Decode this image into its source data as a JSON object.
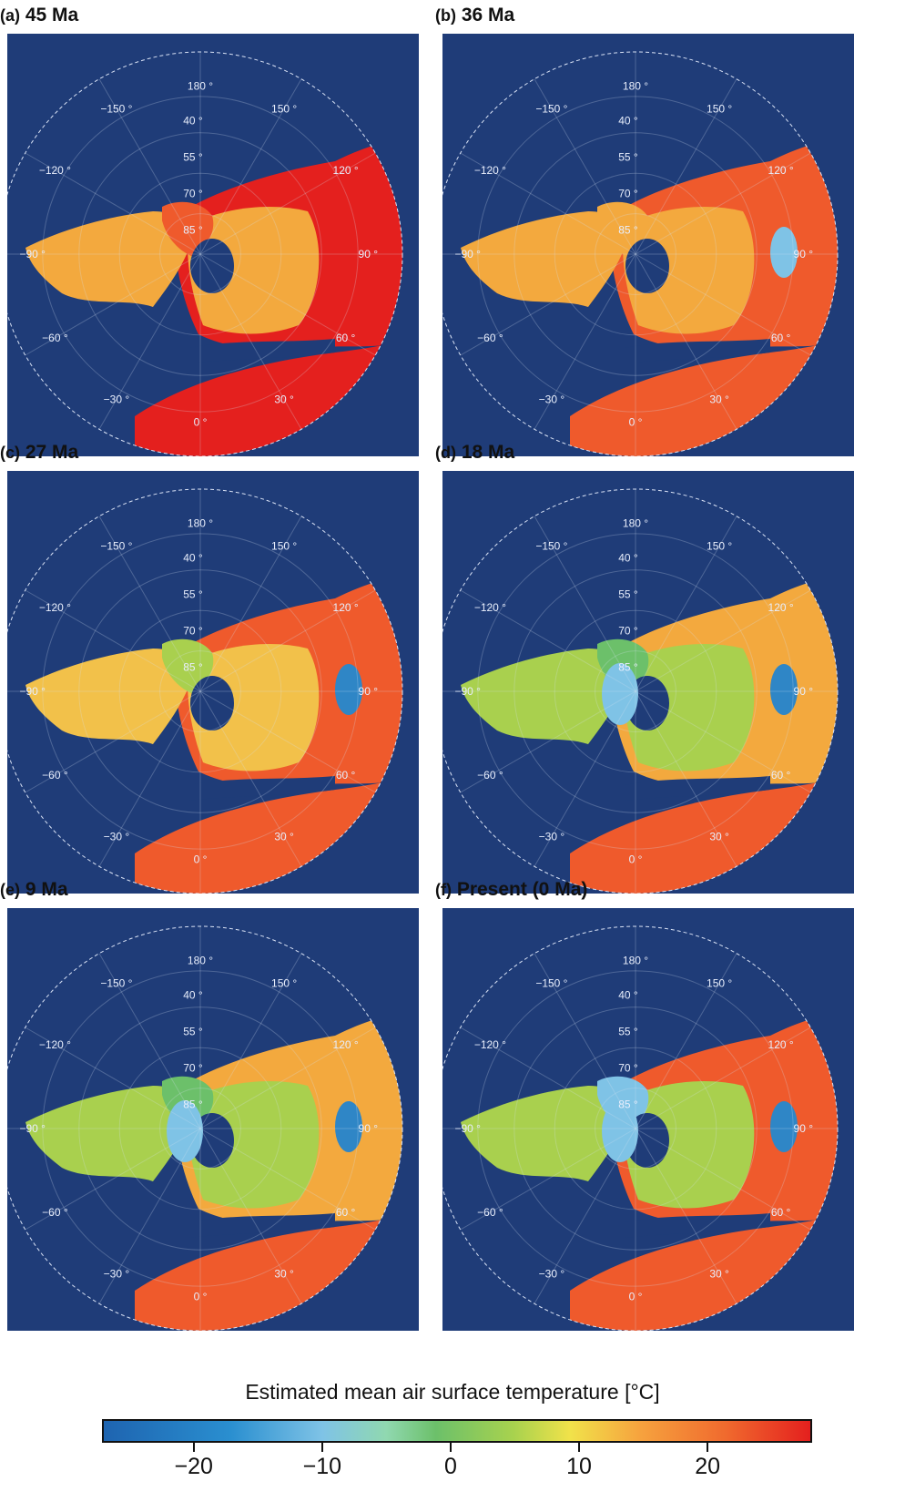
{
  "panels": [
    {
      "label": "(a)",
      "age": "45 Ma"
    },
    {
      "label": "(b)",
      "age": "36 Ma"
    },
    {
      "label": "(c)",
      "age": "27 Ma"
    },
    {
      "label": "(d)",
      "age": "18 Ma"
    },
    {
      "label": "(e)",
      "age": "9 Ma"
    },
    {
      "label": "(f)",
      "age": "Present (0 Ma)"
    }
  ],
  "grid_labels": {
    "longitudes": [
      "180 °",
      "150 °",
      "120 °",
      "90 °",
      "60 °",
      "30 °",
      "0 °",
      "−30 °",
      "−60 °",
      "−90 °",
      "−120 °",
      "−150 °"
    ],
    "latitudes": [
      "40 °",
      "55 °",
      "70 °",
      "85 °"
    ]
  },
  "legend": {
    "title": "Estimated mean air surface temperature [°C]",
    "ticks": [
      "−20",
      "−10",
      "0",
      "10",
      "20"
    ],
    "tick_values": [
      -20,
      -10,
      0,
      10,
      20
    ],
    "range": [
      -27,
      28
    ]
  },
  "colors": {
    "ocean": "#1f3c78",
    "warm": "#ef5a2c",
    "hot": "#e4201e",
    "mild": "#f3a93e",
    "temperate": "#a9d04e",
    "cool": "#6cc06a",
    "cold": "#7fc3e6",
    "frozen": "#2f86c6"
  }
}
